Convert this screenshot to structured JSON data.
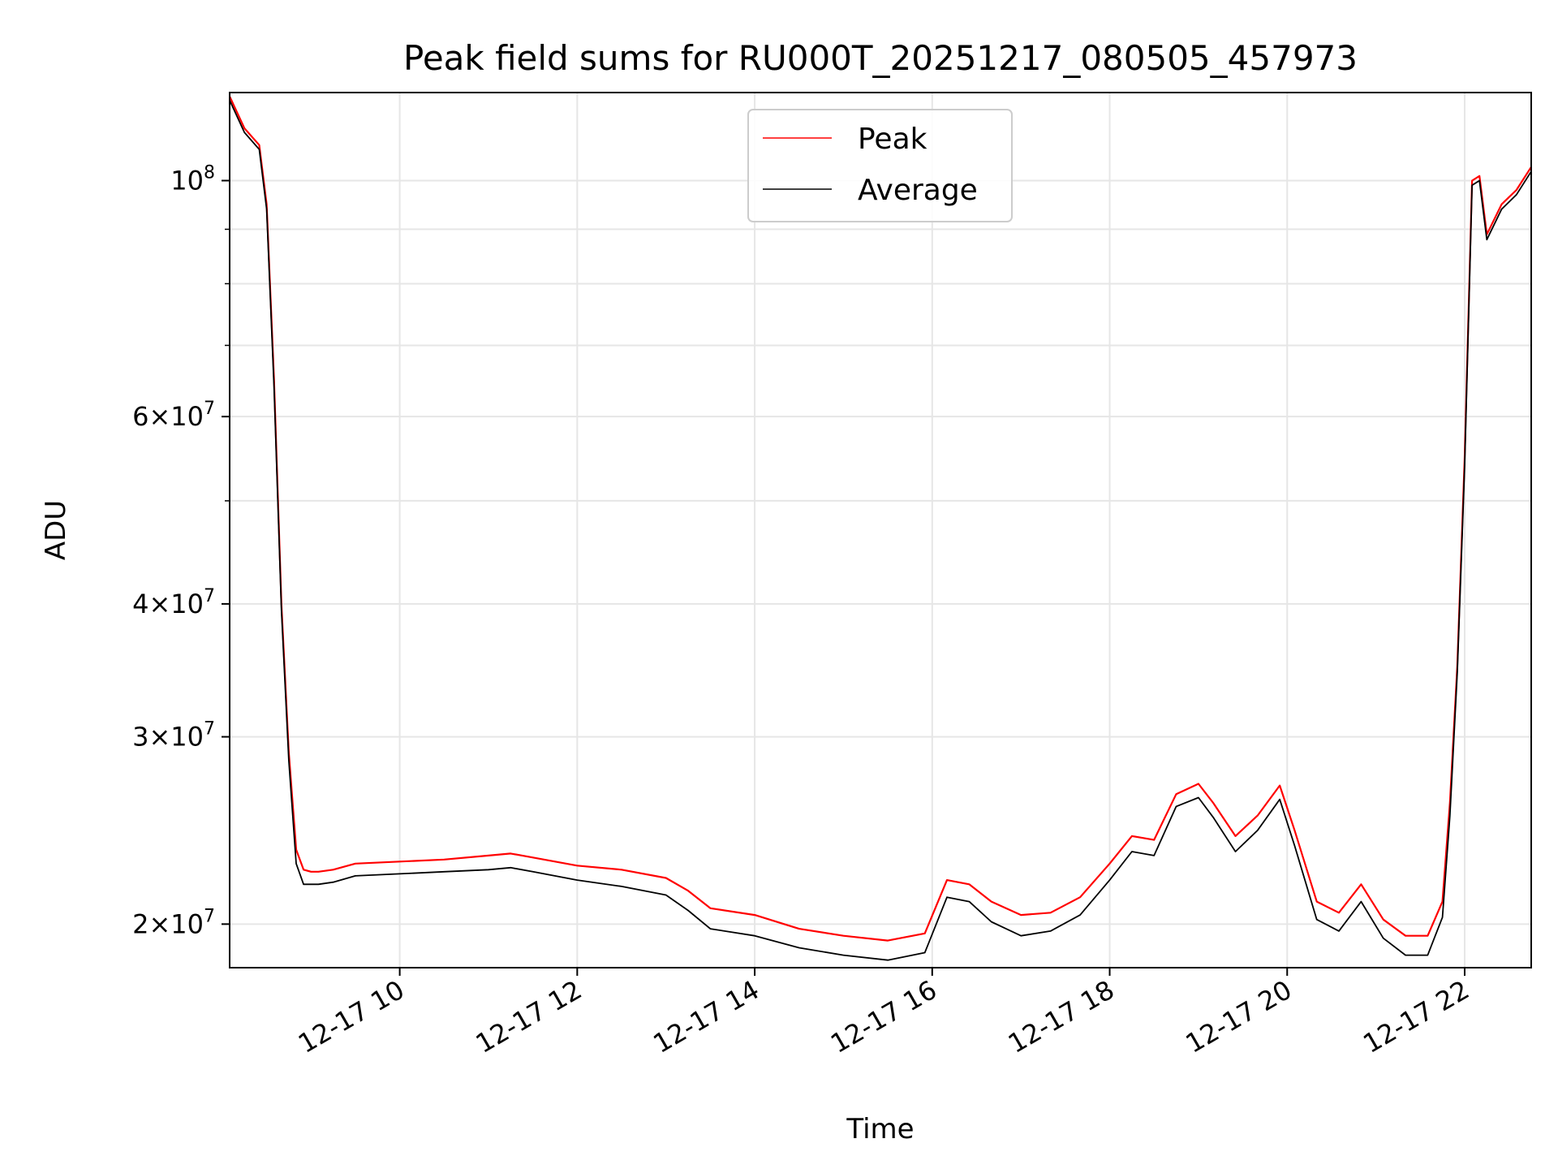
{
  "chart_data": {
    "type": "line",
    "title": "Peak field sums for RU000T_20251217_080505_457973",
    "xlabel": "Time",
    "ylabel": "ADU",
    "y_scale": "log",
    "ylim": [
      18200000,
      121000000
    ],
    "xlim": [
      "2025-12-17 08:05",
      "2025-12-17 22:45"
    ],
    "grid": true,
    "legend": {
      "position": "upper center",
      "entries": [
        "Peak",
        "Average"
      ]
    },
    "x_ticks": [
      {
        "value": "2025-12-17 10:00",
        "label": "12-17 10"
      },
      {
        "value": "2025-12-17 12:00",
        "label": "12-17 12"
      },
      {
        "value": "2025-12-17 14:00",
        "label": "12-17 14"
      },
      {
        "value": "2025-12-17 16:00",
        "label": "12-17 16"
      },
      {
        "value": "2025-12-17 18:00",
        "label": "12-17 18"
      },
      {
        "value": "2025-12-17 20:00",
        "label": "12-17 20"
      },
      {
        "value": "2025-12-17 22:00",
        "label": "12-17 22"
      }
    ],
    "y_ticks_major": [
      {
        "value": 20000000,
        "base": "2",
        "exp": "7"
      },
      {
        "value": 30000000,
        "base": "3",
        "exp": "7"
      },
      {
        "value": 40000000,
        "base": "4",
        "exp": "7"
      },
      {
        "value": 60000000,
        "base": "6",
        "exp": "7"
      },
      {
        "value": 100000000,
        "base": "",
        "exp": "8"
      }
    ],
    "y_ticks_minor": [
      50000000,
      70000000,
      80000000,
      90000000
    ],
    "x": [
      "2025-12-17 08:05",
      "2025-12-17 08:15",
      "2025-12-17 08:25",
      "2025-12-17 08:30",
      "2025-12-17 08:35",
      "2025-12-17 08:40",
      "2025-12-17 08:45",
      "2025-12-17 08:50",
      "2025-12-17 08:55",
      "2025-12-17 09:00",
      "2025-12-17 09:05",
      "2025-12-17 09:15",
      "2025-12-17 09:30",
      "2025-12-17 10:00",
      "2025-12-17 10:30",
      "2025-12-17 11:00",
      "2025-12-17 11:15",
      "2025-12-17 11:30",
      "2025-12-17 12:00",
      "2025-12-17 12:30",
      "2025-12-17 13:00",
      "2025-12-17 13:15",
      "2025-12-17 13:30",
      "2025-12-17 14:00",
      "2025-12-17 14:30",
      "2025-12-17 15:00",
      "2025-12-17 15:30",
      "2025-12-17 15:55",
      "2025-12-17 16:10",
      "2025-12-17 16:25",
      "2025-12-17 16:40",
      "2025-12-17 17:00",
      "2025-12-17 17:20",
      "2025-12-17 17:40",
      "2025-12-17 18:00",
      "2025-12-17 18:15",
      "2025-12-17 18:30",
      "2025-12-17 18:45",
      "2025-12-17 19:00",
      "2025-12-17 19:10",
      "2025-12-17 19:25",
      "2025-12-17 19:40",
      "2025-12-17 19:55",
      "2025-12-17 20:05",
      "2025-12-17 20:20",
      "2025-12-17 20:35",
      "2025-12-17 20:50",
      "2025-12-17 21:05",
      "2025-12-17 21:20",
      "2025-12-17 21:35",
      "2025-12-17 21:45",
      "2025-12-17 21:50",
      "2025-12-17 21:55",
      "2025-12-17 22:00",
      "2025-12-17 22:05",
      "2025-12-17 22:10",
      "2025-12-17 22:15",
      "2025-12-17 22:25",
      "2025-12-17 22:35",
      "2025-12-17 22:45"
    ],
    "series": [
      {
        "name": "Peak",
        "color": "#ff0000",
        "values": [
          120000000,
          112000000,
          108000000,
          95000000,
          65000000,
          40000000,
          29000000,
          23500000,
          22500000,
          22400000,
          22400000,
          22500000,
          22800000,
          22900000,
          23000000,
          23200000,
          23300000,
          23100000,
          22700000,
          22500000,
          22100000,
          21500000,
          20700000,
          20400000,
          19800000,
          19500000,
          19300000,
          19600000,
          22000000,
          21800000,
          21000000,
          20400000,
          20500000,
          21200000,
          22800000,
          24200000,
          24000000,
          26500000,
          27100000,
          26000000,
          24200000,
          25300000,
          27000000,
          24500000,
          21000000,
          20500000,
          21800000,
          20200000,
          19500000,
          19500000,
          21000000,
          26000000,
          35000000,
          55000000,
          100000000,
          101000000,
          89000000,
          95000000,
          98000000,
          103000000
        ]
      },
      {
        "name": "Average",
        "color": "#000000",
        "values": [
          119000000,
          111000000,
          107000000,
          94000000,
          64000000,
          39500000,
          28500000,
          22800000,
          21800000,
          21800000,
          21800000,
          21900000,
          22200000,
          22300000,
          22400000,
          22500000,
          22600000,
          22400000,
          22000000,
          21700000,
          21300000,
          20600000,
          19800000,
          19500000,
          19000000,
          18700000,
          18500000,
          18800000,
          21200000,
          21000000,
          20100000,
          19500000,
          19700000,
          20400000,
          22000000,
          23400000,
          23200000,
          25800000,
          26300000,
          25200000,
          23400000,
          24500000,
          26200000,
          23700000,
          20200000,
          19700000,
          21000000,
          19400000,
          18700000,
          18700000,
          20300000,
          25300000,
          34500000,
          54000000,
          99000000,
          100000000,
          88000000,
          94000000,
          97000000,
          102000000
        ]
      }
    ]
  }
}
